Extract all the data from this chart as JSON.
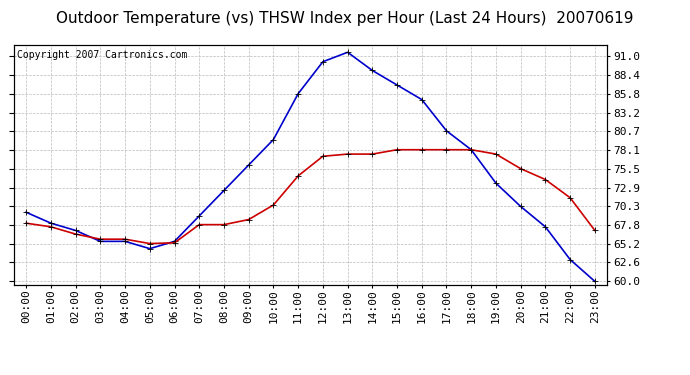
{
  "title": "Outdoor Temperature (vs) THSW Index per Hour (Last 24 Hours)  20070619",
  "copyright": "Copyright 2007 Cartronics.com",
  "hours": [
    0,
    1,
    2,
    3,
    4,
    5,
    6,
    7,
    8,
    9,
    10,
    11,
    12,
    13,
    14,
    15,
    16,
    17,
    18,
    19,
    20,
    21,
    22,
    23
  ],
  "hour_labels": [
    "00:00",
    "01:00",
    "02:00",
    "03:00",
    "04:00",
    "05:00",
    "06:00",
    "07:00",
    "08:00",
    "09:00",
    "10:00",
    "11:00",
    "12:00",
    "13:00",
    "14:00",
    "15:00",
    "16:00",
    "17:00",
    "18:00",
    "19:00",
    "20:00",
    "21:00",
    "22:00",
    "23:00"
  ],
  "thsw": [
    69.5,
    68.0,
    67.0,
    65.5,
    65.5,
    64.5,
    65.5,
    69.0,
    72.5,
    76.0,
    79.5,
    85.8,
    90.2,
    91.5,
    89.0,
    87.0,
    85.0,
    80.7,
    78.1,
    73.5,
    70.3,
    67.5,
    63.0,
    60.0
  ],
  "temp": [
    68.0,
    67.5,
    66.5,
    65.8,
    65.8,
    65.2,
    65.3,
    67.8,
    67.8,
    68.5,
    70.5,
    74.5,
    77.2,
    77.5,
    77.5,
    78.1,
    78.1,
    78.1,
    78.1,
    77.5,
    75.5,
    74.0,
    71.5,
    67.0
  ],
  "thsw_color": "#0000cc",
  "temp_color": "#cc0000",
  "bg_color": "#ffffff",
  "plot_bg_color": "#ffffff",
  "grid_color": "#bbbbbb",
  "ylim": [
    59.5,
    92.5
  ],
  "yticks": [
    60.0,
    62.6,
    65.2,
    67.8,
    70.3,
    72.9,
    75.5,
    78.1,
    80.7,
    83.2,
    85.8,
    88.4,
    91.0
  ],
  "title_fontsize": 11,
  "copyright_fontsize": 7,
  "axis_label_fontsize": 8,
  "marker": "+",
  "marker_size": 5,
  "line_width": 1.2
}
